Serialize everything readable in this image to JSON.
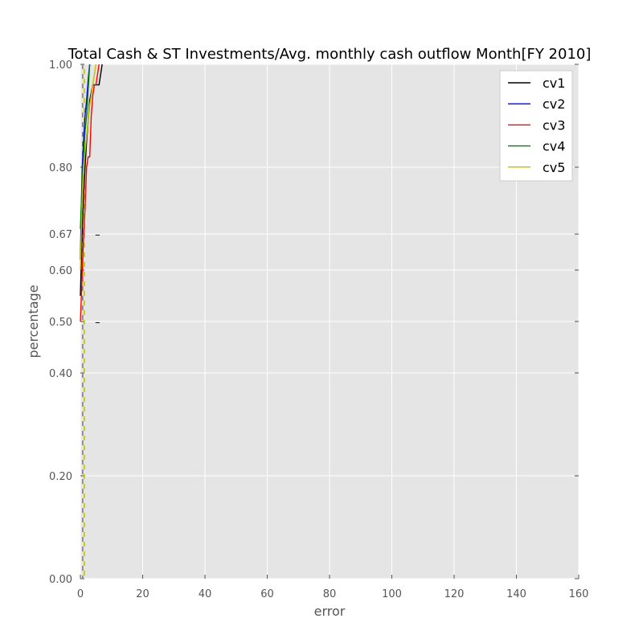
{
  "chart_data": {
    "type": "line",
    "title": "Total Cash & ST Investments/Avg. monthly cash outflow Month[FY 2010]",
    "xlabel": "error",
    "ylabel": "percentage",
    "xlim": [
      0,
      160
    ],
    "ylim": [
      0,
      1
    ],
    "xticks": [
      0,
      20,
      40,
      60,
      80,
      100,
      120,
      140,
      160
    ],
    "xtick_labels": [
      "0",
      "20",
      "40",
      "60",
      "80",
      "100",
      "120",
      "140",
      "160"
    ],
    "yticks": [
      0,
      0.2,
      0.4,
      0.5,
      0.6,
      0.67,
      0.8,
      1.0
    ],
    "ytick_labels": [
      "0.00",
      "0.20",
      "0.40",
      "0.50",
      "0.60",
      "0.67",
      "0.80",
      "1.00"
    ],
    "grid": true,
    "legend_position": "top-right",
    "series": [
      {
        "name": "cv1",
        "color": "#000000",
        "x": [
          0,
          0.5,
          1,
          1.5,
          2,
          2.5,
          3,
          4,
          5,
          6,
          7
        ],
        "y": [
          0.55,
          0.66,
          0.74,
          0.8,
          0.85,
          0.89,
          0.93,
          0.96,
          0.96,
          0.96,
          1.0
        ]
      },
      {
        "name": "cv2",
        "color": "#0000ff",
        "x": [
          0,
          0.3,
          0.6,
          1,
          1.5,
          2,
          2.5,
          3
        ],
        "y": [
          0.62,
          0.72,
          0.8,
          0.85,
          0.9,
          0.93,
          0.97,
          1.0
        ]
      },
      {
        "name": "cv3",
        "color": "#ff0000",
        "x": [
          0,
          0.5,
          1,
          1.5,
          2,
          2.5,
          3,
          3.5,
          4,
          4.5,
          5,
          6
        ],
        "y": [
          0.5,
          0.58,
          0.66,
          0.72,
          0.8,
          0.82,
          0.82,
          0.9,
          0.94,
          0.96,
          0.96,
          1.0
        ]
      },
      {
        "name": "cv4",
        "color": "#008000",
        "x": [
          0,
          0.5,
          1,
          1.5,
          2,
          2.5,
          3
        ],
        "y": [
          0.68,
          0.76,
          0.82,
          0.87,
          0.9,
          0.95,
          1.0
        ]
      },
      {
        "name": "cv5",
        "color": "#bfbf00",
        "x": [
          0,
          0.5,
          1,
          2,
          3,
          4,
          5
        ],
        "y": [
          0.6,
          0.72,
          0.8,
          0.86,
          0.92,
          0.96,
          1.0
        ]
      }
    ],
    "reference_lines": [
      {
        "axis": "x",
        "value": 1,
        "style": "dashed",
        "colors": [
          "#7f7f7f",
          "#bfbf00"
        ]
      }
    ],
    "markers": [
      {
        "x": 5.5,
        "y": 0.67,
        "symbol": "–",
        "color": "#000000"
      },
      {
        "x": 5.5,
        "y": 0.5,
        "symbol": "–",
        "color": "#000000"
      }
    ]
  }
}
